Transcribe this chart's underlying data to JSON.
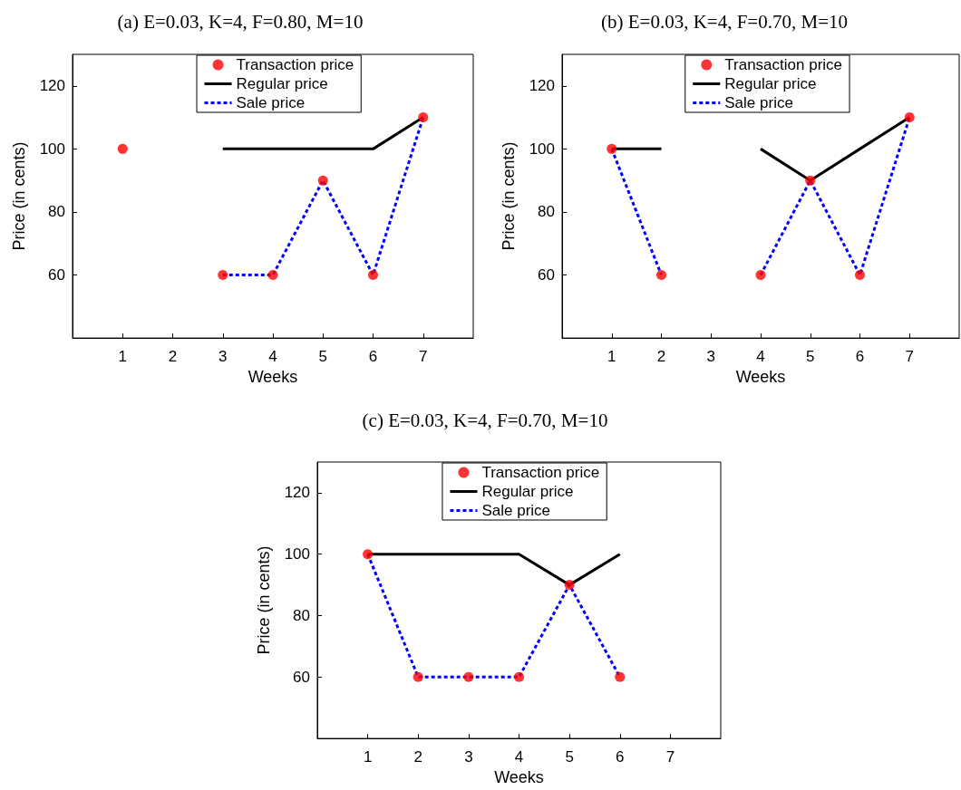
{
  "chart_data": [
    {
      "type": "line",
      "title": "(a) E=0.03, K=4, F=0.80, M=10",
      "xlabel": "Weeks",
      "ylabel": "Price (in cents)",
      "xlim": [
        0,
        8
      ],
      "xticks": [
        1,
        2,
        3,
        4,
        5,
        6,
        7
      ],
      "ylim": [
        40,
        130
      ],
      "yticks": [
        60,
        80,
        100,
        120
      ],
      "grid": false,
      "legend": "top",
      "series": [
        {
          "name": "Transaction price",
          "type": "scatter",
          "marker": "circle",
          "color": "#ff0000",
          "x": [
            1,
            3,
            4,
            5,
            6,
            7
          ],
          "values": [
            100,
            60,
            60,
            90,
            60,
            110
          ]
        },
        {
          "name": "Regular price",
          "line_style": "solid",
          "color": "#000000",
          "x": [
            3,
            4,
            5,
            6,
            7
          ],
          "values": [
            100,
            100,
            100,
            100,
            110
          ]
        },
        {
          "name": "Sale price",
          "line_style": "dashed",
          "color": "#0000ff",
          "x": [
            3,
            4,
            5,
            6,
            7
          ],
          "values": [
            60,
            60,
            90,
            60,
            110
          ]
        }
      ]
    },
    {
      "type": "line",
      "title": "(b) E=0.03, K=4, F=0.70, M=10",
      "xlabel": "Weeks",
      "ylabel": "Price (in cents)",
      "xlim": [
        0,
        8
      ],
      "xticks": [
        1,
        2,
        3,
        4,
        5,
        6,
        7
      ],
      "ylim": [
        40,
        130
      ],
      "yticks": [
        60,
        80,
        100,
        120
      ],
      "grid": false,
      "legend": "top",
      "series": [
        {
          "name": "Transaction price",
          "type": "scatter",
          "marker": "circle",
          "color": "#ff0000",
          "x": [
            1,
            2,
            4,
            5,
            6,
            7
          ],
          "values": [
            100,
            60,
            60,
            90,
            60,
            110
          ]
        },
        {
          "name": "Regular price",
          "line_style": "solid",
          "color": "#000000",
          "x": [
            1,
            2,
            3,
            4,
            5,
            6,
            7
          ],
          "values": [
            100,
            100,
            null,
            100,
            90,
            100,
            110
          ]
        },
        {
          "name": "Sale price",
          "line_style": "dashed",
          "color": "#0000ff",
          "x": [
            1,
            2,
            3,
            4,
            5,
            6,
            7
          ],
          "values": [
            100,
            60,
            null,
            60,
            90,
            60,
            110
          ]
        }
      ]
    },
    {
      "type": "line",
      "title": "(c) E=0.03, K=4, F=0.70, M=10",
      "xlabel": "Weeks",
      "ylabel": "Price (in cents)",
      "xlim": [
        0,
        8
      ],
      "xticks": [
        1,
        2,
        3,
        4,
        5,
        6,
        7
      ],
      "ylim": [
        40,
        130
      ],
      "yticks": [
        60,
        80,
        100,
        120
      ],
      "grid": false,
      "legend": "top",
      "series": [
        {
          "name": "Transaction price",
          "type": "scatter",
          "marker": "circle",
          "color": "#ff0000",
          "x": [
            1,
            2,
            3,
            4,
            5,
            6
          ],
          "values": [
            100,
            60,
            60,
            60,
            90,
            60
          ]
        },
        {
          "name": "Regular price",
          "line_style": "solid",
          "color": "#000000",
          "x": [
            1,
            2,
            3,
            4,
            5,
            6
          ],
          "values": [
            100,
            100,
            100,
            100,
            90,
            100
          ]
        },
        {
          "name": "Sale price",
          "line_style": "dashed",
          "color": "#0000ff",
          "x": [
            1,
            2,
            3,
            4,
            5,
            6
          ],
          "values": [
            100,
            60,
            60,
            60,
            90,
            60
          ]
        }
      ]
    }
  ]
}
